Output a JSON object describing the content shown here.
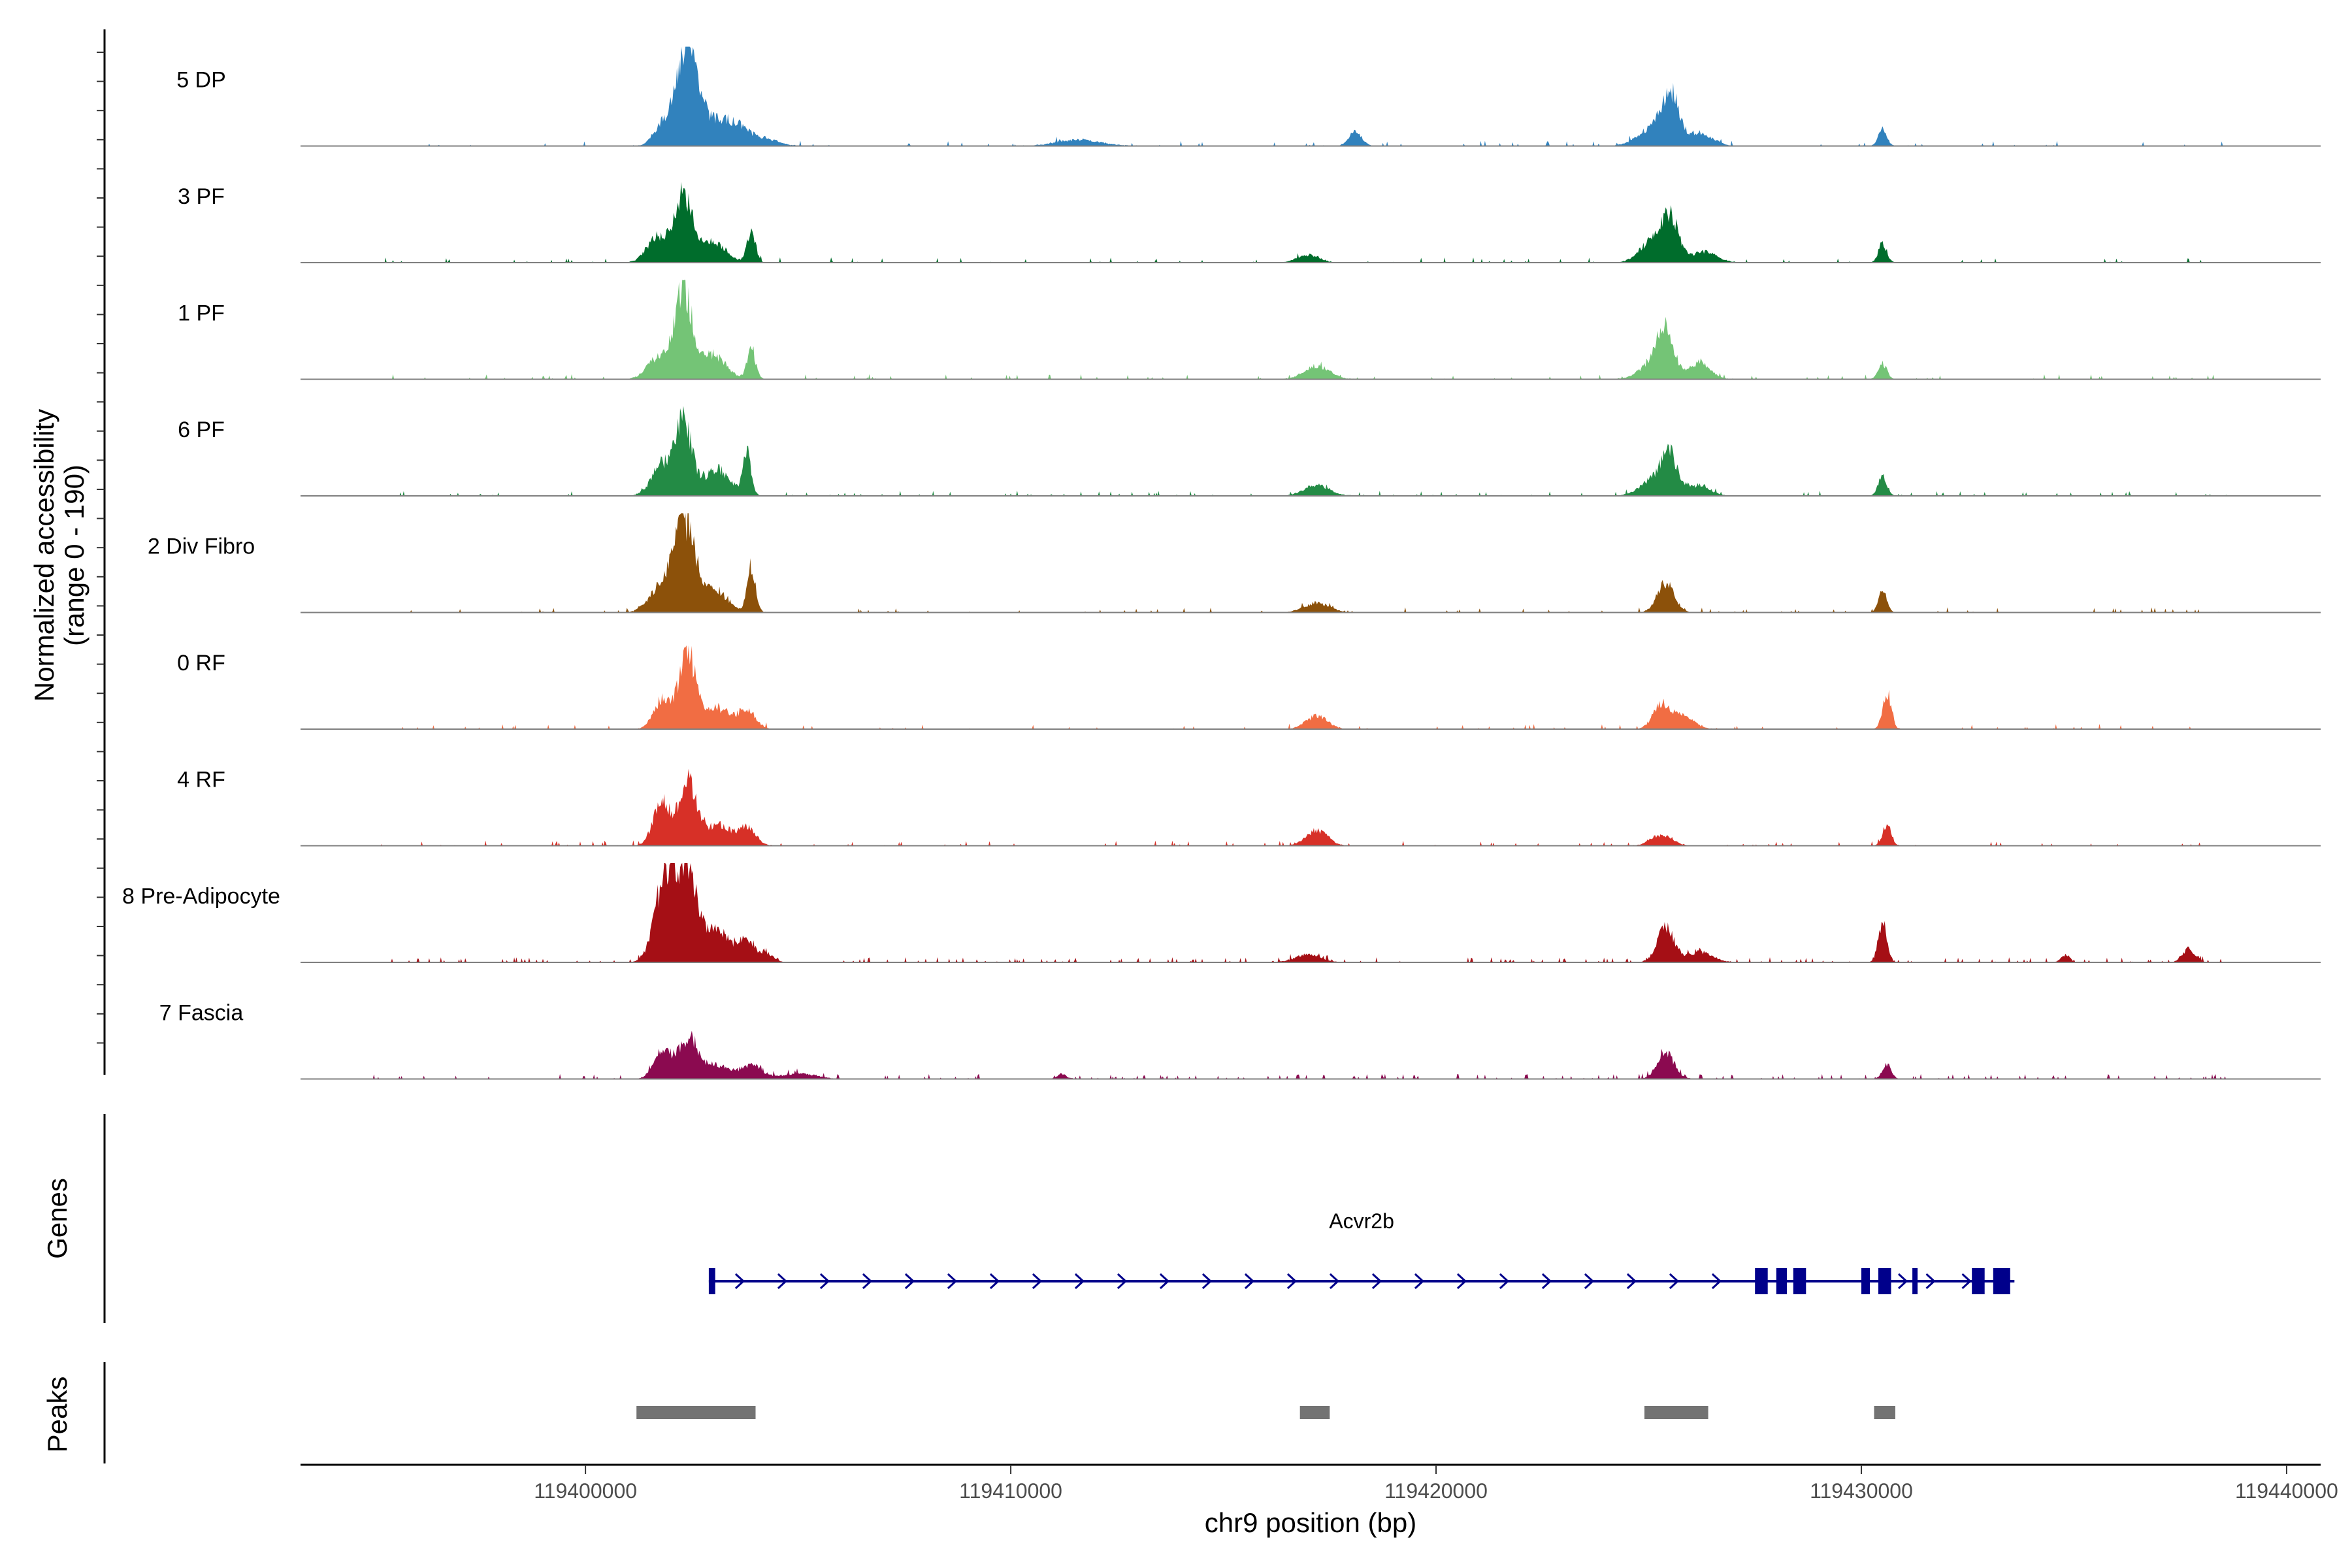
{
  "chart_data": {
    "type": "area",
    "title": "",
    "xlabel": "chr9 position (bp)",
    "ylabel": "Normalized accessibility",
    "ylabel_range": "(range 0 - 190)",
    "xlim": [
      119393300,
      119440800
    ],
    "x_ticks": [
      119400000,
      119410000,
      119420000,
      119430000,
      119440000
    ],
    "x_tick_labels": [
      "119400000",
      "119410000",
      "119420000",
      "119430000",
      "119440000"
    ],
    "ylim": [
      0,
      190
    ],
    "series": [
      {
        "name": "5 DP",
        "color": "#3182bd",
        "noise": 0.015,
        "peaks": [
          [
            119402400,
            190,
            250
          ],
          [
            119401800,
            40,
            200
          ],
          [
            119403100,
            45,
            300
          ],
          [
            119403600,
            30,
            250
          ],
          [
            119404200,
            15,
            300
          ],
          [
            119411600,
            12,
            500
          ],
          [
            119418100,
            28,
            150
          ],
          [
            119425500,
            100,
            200
          ],
          [
            119425000,
            30,
            300
          ],
          [
            119426200,
            25,
            300
          ],
          [
            119430500,
            30,
            100
          ]
        ]
      },
      {
        "name": "3 PF",
        "color": "#006d2c",
        "noise": 0.02,
        "peaks": [
          [
            119402300,
            130,
            200
          ],
          [
            119401700,
            50,
            250
          ],
          [
            119403000,
            40,
            300
          ],
          [
            119403900,
            60,
            100
          ],
          [
            119417000,
            15,
            250
          ],
          [
            119425500,
            80,
            200
          ],
          [
            119425100,
            40,
            300
          ],
          [
            119426300,
            20,
            300
          ],
          [
            119430500,
            35,
            100
          ]
        ]
      },
      {
        "name": "1 PF",
        "color": "#74c476",
        "noise": 0.02,
        "peaks": [
          [
            119402300,
            175,
            200
          ],
          [
            119401700,
            40,
            250
          ],
          [
            119403000,
            45,
            300
          ],
          [
            119403900,
            55,
            100
          ],
          [
            119417200,
            25,
            300
          ],
          [
            119425400,
            80,
            200
          ],
          [
            119425100,
            30,
            300
          ],
          [
            119426200,
            30,
            250
          ],
          [
            119430500,
            30,
            100
          ]
        ]
      },
      {
        "name": "6 PF",
        "color": "#238b45",
        "noise": 0.025,
        "peaks": [
          [
            119402300,
            140,
            200
          ],
          [
            119401800,
            55,
            250
          ],
          [
            119403100,
            50,
            300
          ],
          [
            119403800,
            75,
            100
          ],
          [
            119417200,
            20,
            300
          ],
          [
            119425500,
            70,
            200
          ],
          [
            119425100,
            30,
            300
          ],
          [
            119426200,
            20,
            250
          ],
          [
            119430500,
            40,
            100
          ]
        ]
      },
      {
        "name": "2 Div Fibro",
        "color": "#8c510a",
        "noise": 0.02,
        "peaks": [
          [
            119402300,
            175,
            250
          ],
          [
            119401700,
            40,
            250
          ],
          [
            119403000,
            45,
            300
          ],
          [
            119403900,
            90,
            100
          ],
          [
            119417200,
            18,
            300
          ],
          [
            119425400,
            55,
            200
          ],
          [
            119430500,
            40,
            100
          ]
        ]
      },
      {
        "name": "0 RF",
        "color": "#f16d43",
        "noise": 0.015,
        "peaks": [
          [
            119402400,
            145,
            200
          ],
          [
            119401800,
            55,
            200
          ],
          [
            119403100,
            40,
            300
          ],
          [
            119403800,
            35,
            200
          ],
          [
            119417200,
            25,
            250
          ],
          [
            119425300,
            45,
            200
          ],
          [
            119425800,
            25,
            250
          ],
          [
            119430600,
            70,
            100
          ]
        ]
      },
      {
        "name": "4 RF",
        "color": "#d73027",
        "noise": 0.02,
        "peaks": [
          [
            119402400,
            120,
            200
          ],
          [
            119401800,
            85,
            200
          ],
          [
            119403100,
            40,
            300
          ],
          [
            119403800,
            35,
            200
          ],
          [
            119417200,
            30,
            250
          ],
          [
            119425300,
            20,
            250
          ],
          [
            119430600,
            40,
            100
          ]
        ]
      },
      {
        "name": "8 Pre-Adipocyte",
        "color": "#a50f15",
        "noise": 0.04,
        "peaks": [
          [
            119401900,
            165,
            250
          ],
          [
            119402400,
            150,
            250
          ],
          [
            119403100,
            60,
            300
          ],
          [
            119403800,
            40,
            200
          ],
          [
            119404300,
            15,
            150
          ],
          [
            119417000,
            15,
            300
          ],
          [
            119425400,
            65,
            200
          ],
          [
            119426200,
            20,
            300
          ],
          [
            119430500,
            75,
            100
          ],
          [
            119434800,
            15,
            100
          ],
          [
            119437700,
            25,
            150
          ]
        ]
      },
      {
        "name": "7 Fascia",
        "color": "#8b0a50",
        "noise": 0.04,
        "peaks": [
          [
            119402400,
            70,
            250
          ],
          [
            119401800,
            50,
            200
          ],
          [
            119403100,
            25,
            300
          ],
          [
            119403900,
            25,
            250
          ],
          [
            119405000,
            10,
            400
          ],
          [
            119411200,
            10,
            100
          ],
          [
            119425400,
            50,
            200
          ],
          [
            119430600,
            30,
            100
          ]
        ]
      }
    ],
    "genes": [
      {
        "name": "Acvr2b",
        "strand": "+",
        "start": 119402900,
        "end": 119433600,
        "exons": [
          [
            119402900,
            119403050
          ],
          [
            119427500,
            119427800
          ],
          [
            119428000,
            119428250
          ],
          [
            119428400,
            119428700
          ],
          [
            119430000,
            119430200
          ],
          [
            119430400,
            119430700
          ],
          [
            119431200,
            119431300
          ],
          [
            119432600,
            119432900
          ],
          [
            119433100,
            119433500
          ]
        ]
      }
    ],
    "peaks": [
      [
        119401200,
        119404000
      ],
      [
        119416800,
        119417500
      ],
      [
        119424900,
        119426400
      ],
      [
        119430300,
        119430800
      ]
    ]
  },
  "panels": {
    "genes_label": "Genes",
    "peaks_label": "Peaks"
  }
}
